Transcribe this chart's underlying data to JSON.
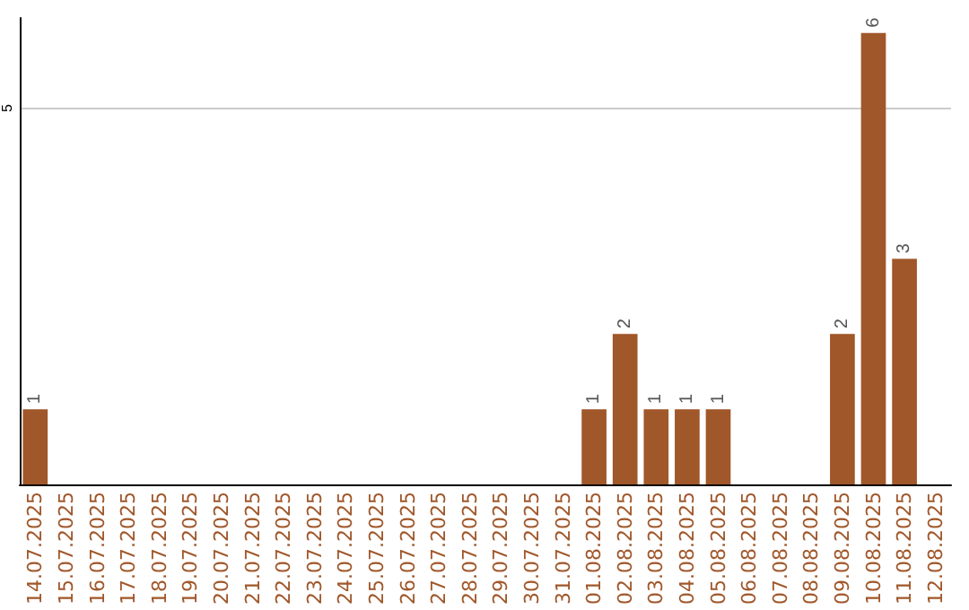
{
  "chart_data": {
    "type": "bar",
    "categories": [
      "14.07.2025",
      "15.07.2025",
      "16.07.2025",
      "17.07.2025",
      "18.07.2025",
      "19.07.2025",
      "20.07.2025",
      "21.07.2025",
      "22.07.2025",
      "23.07.2025",
      "24.07.2025",
      "25.07.2025",
      "26.07.2025",
      "27.07.2025",
      "28.07.2025",
      "29.07.2025",
      "30.07.2025",
      "31.07.2025",
      "01.08.2025",
      "02.08.2025",
      "03.08.2025",
      "04.08.2025",
      "05.08.2025",
      "06.08.2025",
      "07.08.2025",
      "08.08.2025",
      "09.08.2025",
      "10.08.2025",
      "11.08.2025",
      "12.08.2025"
    ],
    "values": [
      1,
      0,
      0,
      0,
      0,
      0,
      0,
      0,
      0,
      0,
      0,
      0,
      0,
      0,
      0,
      0,
      0,
      0,
      1,
      2,
      1,
      1,
      1,
      0,
      0,
      0,
      2,
      6,
      3,
      0
    ],
    "value_labels": [
      "1",
      null,
      null,
      null,
      null,
      null,
      null,
      null,
      null,
      null,
      null,
      null,
      null,
      null,
      null,
      null,
      null,
      null,
      "1",
      "2",
      "1",
      "1",
      "1",
      null,
      null,
      null,
      "2",
      "6",
      "3",
      null
    ],
    "color": "#a0572a",
    "ylim": [
      0,
      6.2
    ],
    "yticks": [
      5
    ],
    "grid": "y"
  }
}
